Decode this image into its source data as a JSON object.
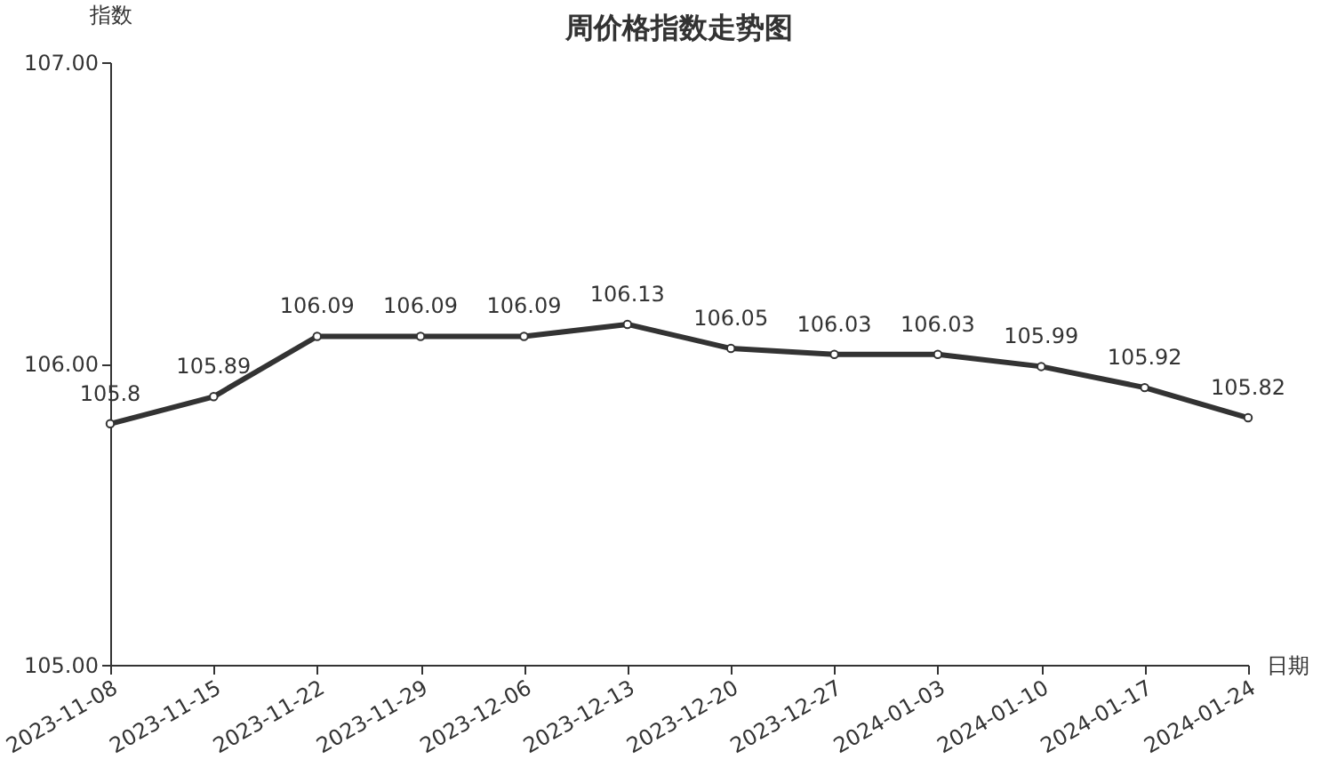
{
  "chart_data": {
    "type": "line",
    "title": "周价格指数走势图",
    "xlabel": "日期",
    "ylabel": "指数",
    "categories": [
      "2023-11-08",
      "2023-11-15",
      "2023-11-22",
      "2023-11-29",
      "2023-12-06",
      "2023-12-13",
      "2023-12-20",
      "2023-12-27",
      "2024-01-03",
      "2024-01-10",
      "2024-01-17",
      "2024-01-24"
    ],
    "series": [
      {
        "color": "#333333",
        "values": [
          105.8,
          105.89,
          106.09,
          106.09,
          106.09,
          106.13,
          106.05,
          106.03,
          106.03,
          105.99,
          105.92,
          105.82
        ]
      }
    ],
    "ylim": [
      105,
      107
    ],
    "yticks": [
      {
        "value": 105,
        "label": "105.00"
      },
      {
        "value": 106,
        "label": "106.00"
      },
      {
        "value": 107,
        "label": "107.00"
      }
    ],
    "grid": false,
    "marker": "circle",
    "line_style": "solid",
    "data_labels": true
  }
}
